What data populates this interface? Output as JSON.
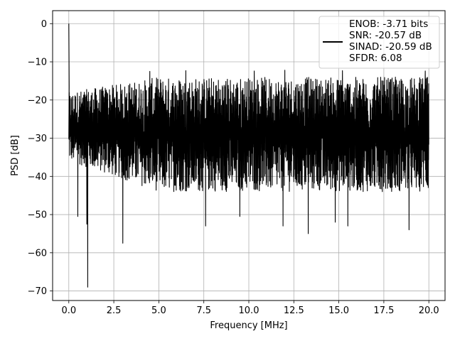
{
  "chart_data": {
    "type": "line",
    "title": "",
    "xlabel": "Frequency [MHz]",
    "ylabel": "PSD [dB]",
    "xlim": [
      -0.9,
      20.9
    ],
    "ylim": [
      -72.5,
      3.4
    ],
    "grid": true,
    "legend_position": "top-right",
    "x_ticks": [
      {
        "value": 0.0,
        "label": "0.0"
      },
      {
        "value": 2.5,
        "label": "2.5"
      },
      {
        "value": 5.0,
        "label": "5.0"
      },
      {
        "value": 7.5,
        "label": "7.5"
      },
      {
        "value": 10.0,
        "label": "10.0"
      },
      {
        "value": 12.5,
        "label": "12.5"
      },
      {
        "value": 15.0,
        "label": "15.0"
      },
      {
        "value": 17.5,
        "label": "17.5"
      },
      {
        "value": 20.0,
        "label": "20.0"
      }
    ],
    "y_ticks": [
      {
        "value": 0,
        "label": "0"
      },
      {
        "value": -10,
        "label": "−10"
      },
      {
        "value": -20,
        "label": "−20"
      },
      {
        "value": -30,
        "label": "−30"
      },
      {
        "value": -40,
        "label": "−40"
      },
      {
        "value": -50,
        "label": "−50"
      },
      {
        "value": -60,
        "label": "−60"
      },
      {
        "value": -70,
        "label": "−70"
      }
    ],
    "legend_lines": [
      "ENOB: -3.71 bits",
      "SNR: -20.57 dB",
      "SINAD: -20.59 dB",
      "SFDR: 6.08"
    ],
    "series": [
      {
        "color": "#000000",
        "x_start": 0.0,
        "x_end": 20.0,
        "noise_floor_top": [
          -18,
          -14
        ],
        "noise_floor_bottom": [
          -36,
          -44
        ],
        "peaks": [
          {
            "x": 0.0,
            "y": 0.0
          },
          {
            "x": 0.02,
            "y": -16.5
          },
          {
            "x": 1.05,
            "y": -69.0
          },
          {
            "x": 3.0,
            "y": -57.5
          },
          {
            "x": 0.5,
            "y": -50.5
          },
          {
            "x": 1.0,
            "y": -52.5
          },
          {
            "x": 7.6,
            "y": -53.0
          },
          {
            "x": 9.5,
            "y": -50.5
          },
          {
            "x": 11.9,
            "y": -53.0
          },
          {
            "x": 13.3,
            "y": -55.0
          },
          {
            "x": 14.8,
            "y": -52.0
          },
          {
            "x": 15.5,
            "y": -53.0
          },
          {
            "x": 18.9,
            "y": -54.0
          },
          {
            "x": 4.5,
            "y": -12.5
          },
          {
            "x": 6.5,
            "y": -12.3
          },
          {
            "x": 10.3,
            "y": -12.4
          },
          {
            "x": 12.0,
            "y": -12.2
          },
          {
            "x": 15.2,
            "y": -12.3
          },
          {
            "x": 19.8,
            "y": -12.4
          }
        ]
      }
    ]
  }
}
